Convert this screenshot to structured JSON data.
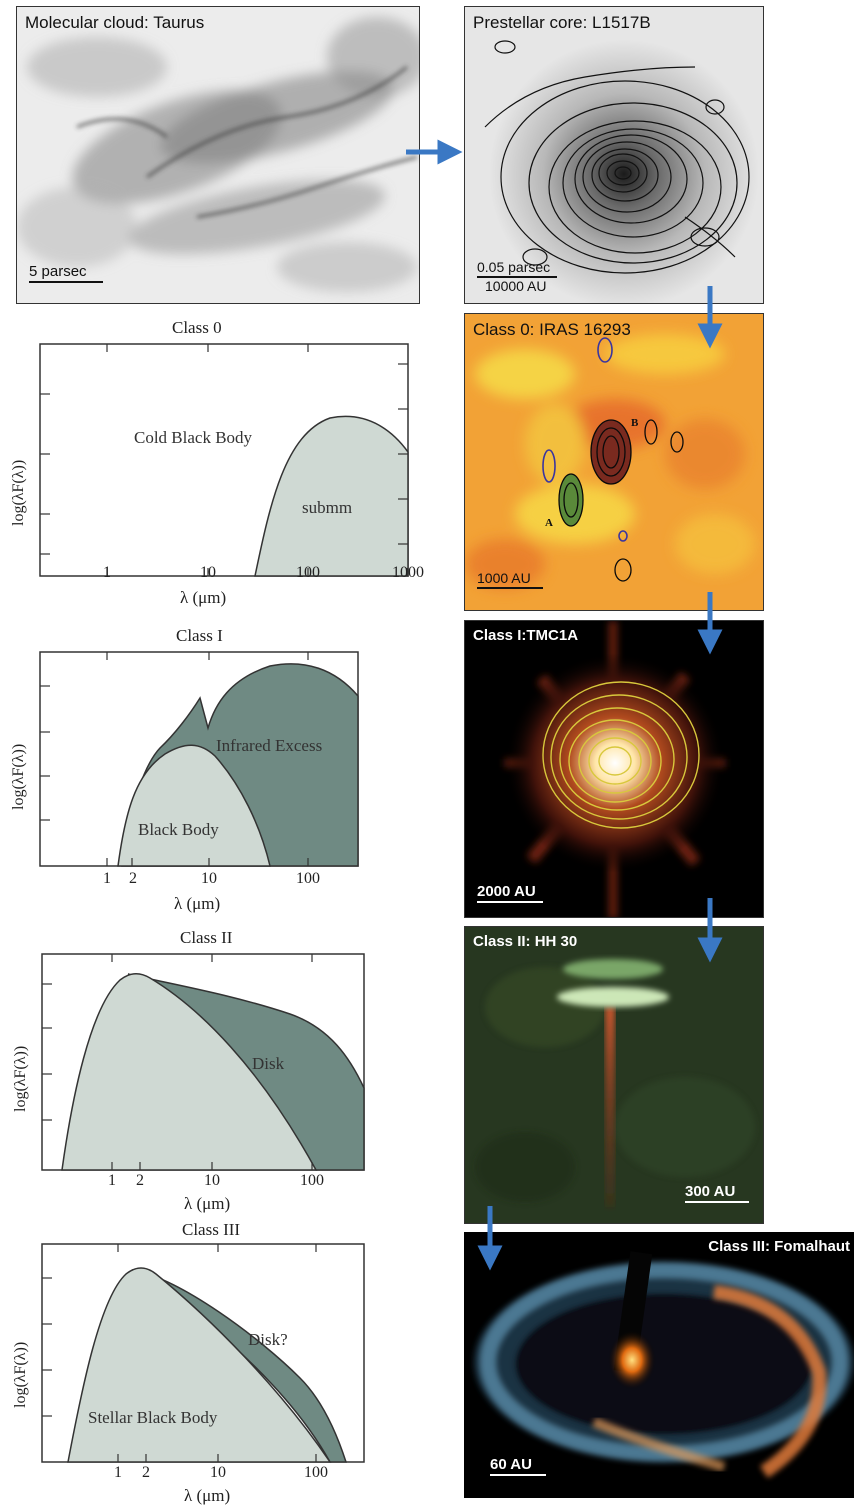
{
  "panels": {
    "taurus": {
      "label": "Molecular cloud: Taurus",
      "scale": "5 parsec"
    },
    "l1517b": {
      "label": "Prestellar core: L1517B",
      "scale1": "0.05 parsec",
      "scale2": "10000 AU"
    },
    "iras": {
      "label": "Class 0: IRAS 16293",
      "scale": "1000 AU",
      "marker_a": "A",
      "marker_b": "B"
    },
    "tmc1a": {
      "label": "Class I:TMC1A",
      "scale": "2000 AU"
    },
    "hh30": {
      "label": "Class II: HH 30",
      "scale": "300 AU"
    },
    "fomalhaut": {
      "label": "Class III: Fomalhaut",
      "scale": "60 AU"
    }
  },
  "sed_common": {
    "ylabel": "log(λF(λ))",
    "xlabel": "λ (μm)"
  },
  "seds": [
    {
      "title": "Class 0",
      "ticks": [
        "1",
        "10",
        "100",
        "1000"
      ],
      "labels": [
        "Cold Black Body",
        "submm"
      ]
    },
    {
      "title": "Class I",
      "ticks": [
        "1",
        "2",
        "10",
        "100"
      ],
      "labels": [
        "Infrared Excess",
        "Black Body"
      ]
    },
    {
      "title": "Class II",
      "ticks": [
        "1",
        "2",
        "10",
        "100"
      ],
      "labels": [
        "Disk"
      ]
    },
    {
      "title": "Class III",
      "ticks": [
        "1",
        "2",
        "10",
        "100"
      ],
      "labels": [
        "Disk?",
        "Stellar Black Body"
      ]
    }
  ],
  "colors": {
    "light_fill": "#cfd9d3",
    "dark_fill": "#6f8a83",
    "arrow": "#3a78c4",
    "axis": "#333333"
  }
}
